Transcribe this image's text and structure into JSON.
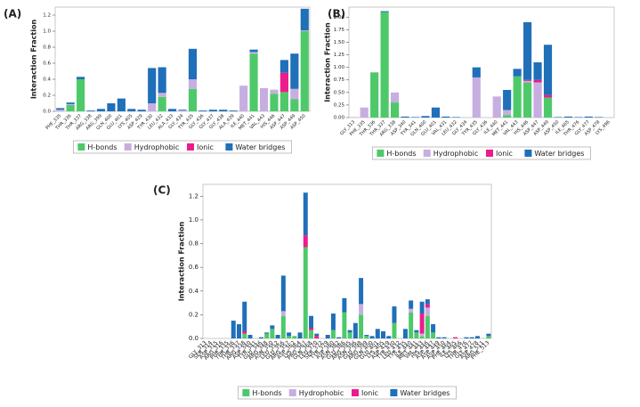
{
  "chart_data": [
    {
      "type": "bar",
      "stacked": true,
      "panel_label": "(A)",
      "ylabel": "Interaction Fraction",
      "categories": [
        "PHE_335",
        "THR_336",
        "THR_337",
        "ARG_338",
        "ARG_399",
        "GLN_400",
        "GLU_401",
        "LYS_405",
        "ASP_429",
        "TYR_430",
        "LEU_432",
        "ALA_433",
        "GLY_434",
        "TYR_435",
        "GLY_436",
        "GLY_437",
        "GLY_438",
        "ALA_439",
        "ILE_440",
        "MET_441",
        "VAL_443",
        "HIS_446",
        "ASP_447",
        "ASP_449",
        "ASP_450"
      ],
      "series": [
        {
          "name": "H-bonds",
          "color": "#4ec96a",
          "values": [
            0,
            0.08,
            0.4,
            0,
            0,
            0,
            0,
            0,
            0,
            0,
            0.18,
            0,
            0,
            0.28,
            0,
            0,
            0,
            0,
            0,
            0.72,
            0,
            0.22,
            0.24,
            0.15,
            1.0
          ]
        },
        {
          "name": "Hydrophobic",
          "color": "#c7aee0",
          "values": [
            0.02,
            0.01,
            0,
            0,
            0,
            0,
            0,
            0,
            0,
            0.1,
            0.05,
            0,
            0.01,
            0.12,
            0,
            0,
            0,
            0,
            0.32,
            0.02,
            0.29,
            0.05,
            0,
            0.13,
            0.01
          ]
        },
        {
          "name": "Ionic",
          "color": "#ec1c8c",
          "values": [
            0,
            0,
            0,
            0,
            0,
            0,
            0,
            0,
            0,
            0,
            0,
            0,
            0,
            0,
            0,
            0,
            0,
            0,
            0,
            0,
            0,
            0,
            0.24,
            0,
            0
          ]
        },
        {
          "name": "Water bridges",
          "color": "#1f6fb9",
          "values": [
            0.02,
            0.02,
            0.03,
            0.01,
            0.03,
            0.1,
            0.16,
            0.03,
            0.02,
            0.44,
            0.32,
            0.03,
            0.01,
            0.38,
            0.01,
            0.02,
            0.02,
            0.01,
            0,
            0.03,
            0,
            0,
            0.16,
            0.44,
            0.27
          ]
        }
      ],
      "ylim": [
        0,
        1.3
      ],
      "yticks": [
        {
          "value": 0,
          "label": "0.0"
        },
        0.2,
        0.4,
        0.6,
        0.8,
        {
          "value": 1,
          "label": "1.0"
        },
        1.2
      ]
    },
    {
      "type": "bar",
      "stacked": true,
      "panel_label": "(B)",
      "ylabel": "Interaction Fraction",
      "categories": [
        "GLY_313",
        "PHE_335",
        "THR_336",
        "THR_337",
        "ARG_338",
        "ASP_340",
        "TYR_341",
        "GLN_400",
        "GLU_401",
        "VAL_431",
        "LEU_432",
        "GLY_434",
        "TYR_435",
        "GLY_436",
        "ILE_440",
        "MET_441",
        "VAL_443",
        "HIS_446",
        "ASP_447",
        "ASP_449",
        "ASP_450",
        "ILE_465",
        "THR_476",
        "GLY_477",
        "ASP_478",
        "LYS_496"
      ],
      "series": [
        {
          "name": "H-bonds",
          "color": "#4ec96a",
          "values": [
            0,
            0,
            0.9,
            2.1,
            0.3,
            0,
            0,
            0,
            0,
            0,
            0,
            0,
            0,
            0,
            0,
            0.05,
            0.82,
            0.7,
            0,
            0.4,
            0,
            0,
            0,
            0,
            0,
            0
          ]
        },
        {
          "name": "Hydrophobic",
          "color": "#c7aee0",
          "values": [
            0.01,
            0.2,
            0,
            0,
            0.2,
            0,
            0,
            0,
            0,
            0,
            0,
            0,
            0.8,
            0,
            0.42,
            0.1,
            0,
            0.03,
            0.7,
            0,
            0,
            0,
            0,
            0,
            0,
            0
          ]
        },
        {
          "name": "Ionic",
          "color": "#ec1c8c",
          "values": [
            0,
            0,
            0,
            0,
            0,
            0,
            0,
            0,
            0,
            0,
            0,
            0,
            0,
            0,
            0,
            0,
            0,
            0.02,
            0.05,
            0.05,
            0,
            0,
            0,
            0,
            0,
            0
          ]
        },
        {
          "name": "Water bridges",
          "color": "#1f6fb9",
          "values": [
            0,
            0,
            0,
            0.02,
            0,
            0.02,
            0.01,
            0.03,
            0.2,
            0.02,
            0.01,
            0,
            0.2,
            0,
            0,
            0.4,
            0.15,
            1.15,
            0.35,
            1.0,
            0.01,
            0.02,
            0.01,
            0.02,
            0.01,
            0
          ]
        }
      ],
      "ylim": [
        0,
        2.2
      ],
      "yticks": [
        {
          "value": 0,
          "label": "0.00"
        },
        0.25,
        {
          "value": 0.5,
          "label": "0.50"
        },
        0.75,
        {
          "value": 1,
          "label": "1.00"
        },
        1.25,
        {
          "value": 1.5,
          "label": "1.50"
        },
        1.75,
        {
          "value": 2,
          "label": "2.00"
        }
      ]
    },
    {
      "type": "bar",
      "stacked": true,
      "panel_label": "(C)",
      "ylabel": "Interaction Fraction",
      "categories": [
        "GLY_313",
        "SER_314",
        "ASP_315",
        "ARG_316",
        "PHE_335",
        "THR_336",
        "THR_337",
        "ARG_338",
        "ASP_340",
        "TYR_341",
        "GLU_346",
        "ARG_348",
        "ASN_350",
        "LEU_352",
        "GLU_356",
        "ARG_357",
        "ASP_362",
        "LYS_364",
        "PRO_367",
        "GLN_368",
        "LEU_370",
        "SER_372",
        "TYR_379",
        "ASP_380",
        "ASN_382",
        "GLU_386",
        "ARG_395",
        "ASN_396",
        "GLU_398",
        "ARG_399",
        "GLN_400",
        "GLU_401",
        "LYS_405",
        "ASP_429",
        "TYR_430",
        "LEU_432",
        "TYR_435",
        "ILE_440",
        "MET_441",
        "VAL_443",
        "HIS_446",
        "ASP_447",
        "ASP_449",
        "ASP_450",
        "PHE_464",
        "ILE_465",
        "LYS_466",
        "THR_476",
        "GLY_477",
        "ASP_478",
        "ARG_511",
        "PHE_513"
      ],
      "series": [
        {
          "name": "H-bonds",
          "color": "#4ec96a",
          "values": [
            0,
            0,
            0,
            0,
            0,
            0,
            0,
            0.04,
            0,
            0,
            0,
            0.04,
            0.08,
            0,
            0.19,
            0.02,
            0.02,
            0,
            0.77,
            0.07,
            0,
            0,
            0,
            0.07,
            0,
            0.22,
            0.05,
            0,
            0.2,
            0.02,
            0,
            0,
            0,
            0,
            0.13,
            0,
            0,
            0.22,
            0.05,
            0.02,
            0.19,
            0.05,
            0,
            0,
            0,
            0,
            0,
            0,
            0,
            0,
            0,
            0.02
          ]
        },
        {
          "name": "Hydrophobic",
          "color": "#c7aee0",
          "values": [
            0,
            0,
            0,
            0,
            0,
            0,
            0,
            0,
            0,
            0,
            0,
            0,
            0,
            0,
            0.04,
            0,
            0,
            0,
            0,
            0,
            0,
            0,
            0,
            0,
            0,
            0,
            0,
            0,
            0.09,
            0,
            0,
            0,
            0,
            0,
            0,
            0,
            0,
            0.03,
            0,
            0.02,
            0.07,
            0,
            0,
            0,
            0,
            0,
            0,
            0,
            0,
            0,
            0,
            0
          ]
        },
        {
          "name": "Ionic",
          "color": "#ec1c8c",
          "values": [
            0,
            0,
            0,
            0,
            0,
            0,
            0,
            0.02,
            0,
            0,
            0,
            0,
            0,
            0,
            0,
            0,
            0,
            0,
            0.1,
            0.02,
            0.02,
            0,
            0,
            0,
            0,
            0,
            0,
            0,
            0,
            0,
            0,
            0,
            0,
            0,
            0,
            0,
            0,
            0,
            0,
            0.17,
            0.03,
            0,
            0,
            0,
            0,
            0.01,
            0,
            0,
            0,
            0,
            0,
            0
          ]
        },
        {
          "name": "Water bridges",
          "color": "#1f6fb9",
          "values": [
            0,
            0,
            0,
            0,
            0,
            0.15,
            0.12,
            0.25,
            0.03,
            0,
            0.01,
            0.01,
            0.03,
            0.03,
            0.3,
            0.03,
            0,
            0.05,
            0.36,
            0.1,
            0.02,
            0,
            0.03,
            0.14,
            0.01,
            0.12,
            0.02,
            0.13,
            0.22,
            0.01,
            0.02,
            0.08,
            0.06,
            0.02,
            0.14,
            0,
            0.08,
            0.07,
            0.02,
            0.1,
            0.04,
            0.07,
            0.01,
            0.01,
            0,
            0,
            0,
            0.01,
            0.01,
            0.02,
            0,
            0.02
          ]
        }
      ],
      "ylim": [
        0,
        1.3
      ],
      "yticks": [
        {
          "value": 0,
          "label": "0.0"
        },
        0.2,
        0.4,
        0.6,
        0.8,
        {
          "value": 1,
          "label": "1.0"
        },
        1.2
      ]
    }
  ]
}
